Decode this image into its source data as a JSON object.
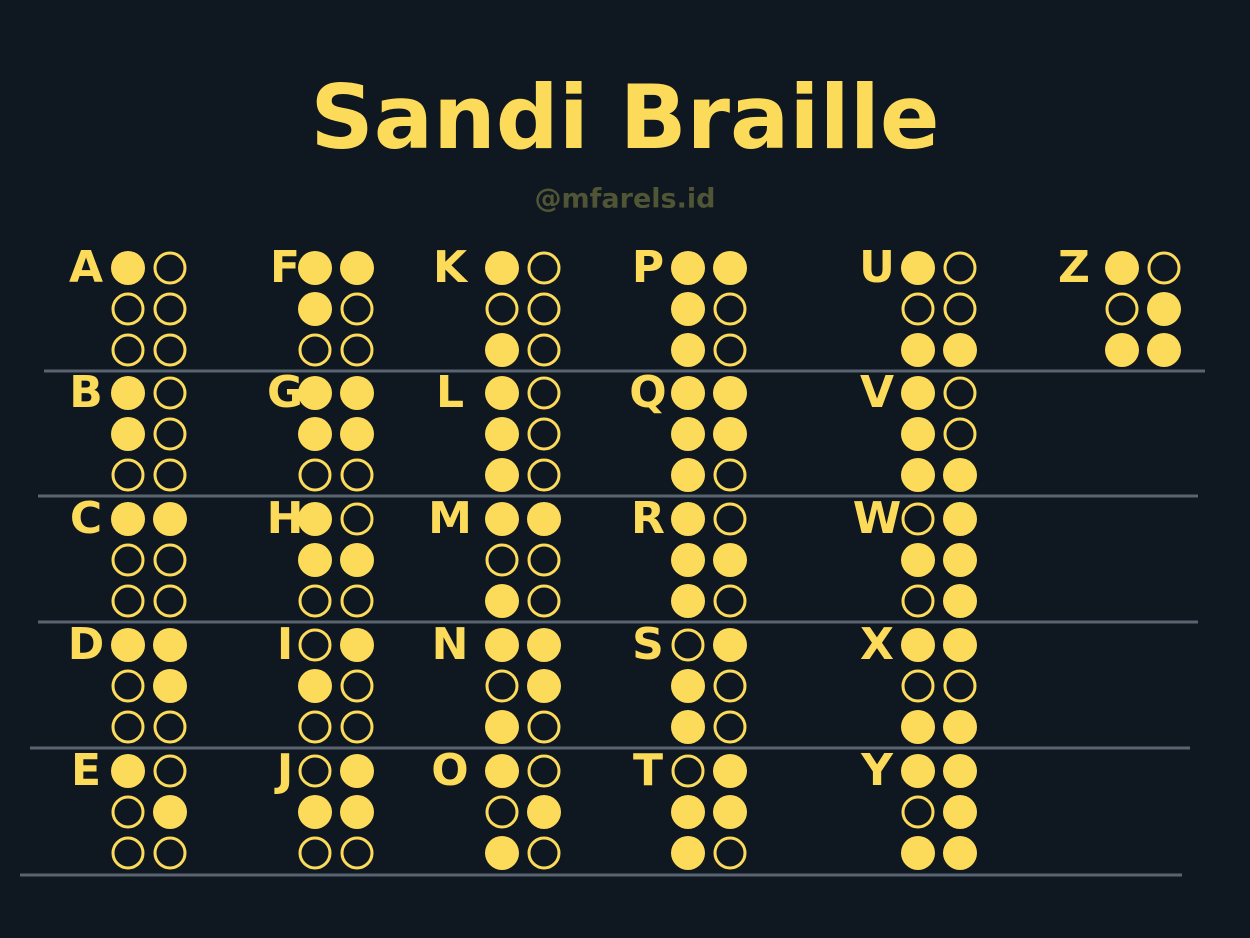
{
  "header": {
    "title": "Sandi Braille",
    "subtitle": "@mfarels.id"
  },
  "letters": [
    {
      "letter": "A",
      "dots": [
        1
      ]
    },
    {
      "letter": "B",
      "dots": [
        1,
        2
      ]
    },
    {
      "letter": "C",
      "dots": [
        1,
        4
      ]
    },
    {
      "letter": "D",
      "dots": [
        1,
        4,
        5
      ]
    },
    {
      "letter": "E",
      "dots": [
        1,
        5
      ]
    },
    {
      "letter": "F",
      "dots": [
        1,
        2,
        4
      ]
    },
    {
      "letter": "G",
      "dots": [
        1,
        2,
        4,
        5
      ]
    },
    {
      "letter": "H",
      "dots": [
        1,
        2,
        5
      ]
    },
    {
      "letter": "I",
      "dots": [
        2,
        4
      ]
    },
    {
      "letter": "J",
      "dots": [
        2,
        4,
        5
      ]
    },
    {
      "letter": "K",
      "dots": [
        1,
        3
      ]
    },
    {
      "letter": "L",
      "dots": [
        1,
        2,
        3
      ]
    },
    {
      "letter": "M",
      "dots": [
        1,
        3,
        4
      ]
    },
    {
      "letter": "N",
      "dots": [
        1,
        3,
        4,
        5
      ]
    },
    {
      "letter": "O",
      "dots": [
        1,
        3,
        5
      ]
    },
    {
      "letter": "P",
      "dots": [
        1,
        2,
        3,
        4
      ]
    },
    {
      "letter": "Q",
      "dots": [
        1,
        2,
        3,
        4,
        5
      ]
    },
    {
      "letter": "R",
      "dots": [
        1,
        2,
        3,
        5
      ]
    },
    {
      "letter": "S",
      "dots": [
        2,
        3,
        4
      ]
    },
    {
      "letter": "T",
      "dots": [
        2,
        3,
        4,
        5
      ]
    },
    {
      "letter": "U",
      "dots": [
        1,
        3,
        6
      ]
    },
    {
      "letter": "V",
      "dots": [
        1,
        2,
        3,
        6
      ]
    },
    {
      "letter": "W",
      "dots": [
        2,
        4,
        5,
        6
      ]
    },
    {
      "letter": "X",
      "dots": [
        1,
        3,
        4,
        6
      ]
    },
    {
      "letter": "Y",
      "dots": [
        1,
        3,
        4,
        5,
        6
      ]
    },
    {
      "letter": "Z",
      "dots": [
        1,
        3,
        5,
        6
      ]
    }
  ]
}
